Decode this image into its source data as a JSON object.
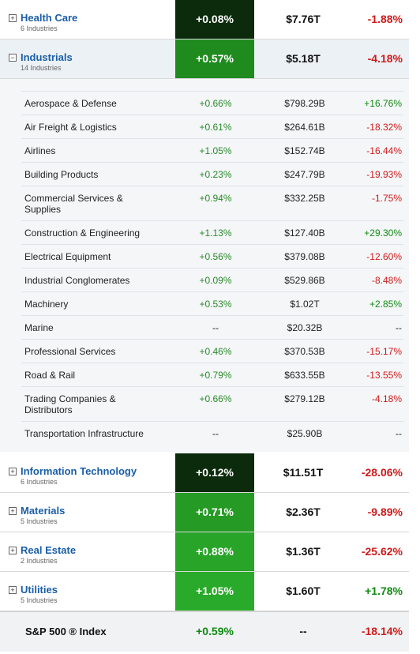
{
  "colors": {
    "link": "#1a5ea8",
    "positive": "#108a10",
    "negative": "#d01919"
  },
  "sectors": [
    {
      "name": "Health Care",
      "sub": "6 Industries",
      "change": "+0.08%",
      "cap": "$7.76T",
      "ytd": "-1.88%",
      "toggle": "+",
      "tile": "#0c2b0c"
    },
    {
      "name": "Industrials",
      "sub": "14 Industries",
      "change": "+0.57%",
      "cap": "$5.18T",
      "ytd": "-4.18%",
      "toggle": "−",
      "tile": "#1f8b1f"
    },
    {
      "name": "Information Technology",
      "sub": "6 Industries",
      "change": "+0.12%",
      "cap": "$11.51T",
      "ytd": "-28.06%",
      "toggle": "+",
      "tile": "#0c2b0c"
    },
    {
      "name": "Materials",
      "sub": "5 Industries",
      "change": "+0.71%",
      "cap": "$2.36T",
      "ytd": "-9.89%",
      "toggle": "+",
      "tile": "#259b25"
    },
    {
      "name": "Real Estate",
      "sub": "2 Industries",
      "change": "+0.88%",
      "cap": "$1.36T",
      "ytd": "-25.62%",
      "toggle": "+",
      "tile": "#28a428"
    },
    {
      "name": "Utilities",
      "sub": "5 Industries",
      "change": "+1.05%",
      "cap": "$1.60T",
      "ytd": "+1.78%",
      "toggle": "+",
      "tile": "#2aaa2a"
    }
  ],
  "industries": [
    {
      "name": "Aerospace & Defense",
      "change": "+0.66%",
      "cap": "$798.29B",
      "ytd": "+16.76%"
    },
    {
      "name": "Air Freight & Logistics",
      "change": "+0.61%",
      "cap": "$264.61B",
      "ytd": "-18.32%"
    },
    {
      "name": "Airlines",
      "change": "+1.05%",
      "cap": "$152.74B",
      "ytd": "-16.44%"
    },
    {
      "name": "Building Products",
      "change": "+0.23%",
      "cap": "$247.79B",
      "ytd": "-19.93%"
    },
    {
      "name": "Commercial Services & Supplies",
      "change": "+0.94%",
      "cap": "$332.25B",
      "ytd": "-1.75%"
    },
    {
      "name": "Construction & Engineering",
      "change": "+1.13%",
      "cap": "$127.40B",
      "ytd": "+29.30%"
    },
    {
      "name": "Electrical Equipment",
      "change": "+0.56%",
      "cap": "$379.08B",
      "ytd": "-12.60%"
    },
    {
      "name": "Industrial Conglomerates",
      "change": "+0.09%",
      "cap": "$529.86B",
      "ytd": "-8.48%"
    },
    {
      "name": "Machinery",
      "change": "+0.53%",
      "cap": "$1.02T",
      "ytd": "+2.85%"
    },
    {
      "name": "Marine",
      "change": "--",
      "cap": "$20.32B",
      "ytd": "--"
    },
    {
      "name": "Professional Services",
      "change": "+0.46%",
      "cap": "$370.53B",
      "ytd": "-15.17%"
    },
    {
      "name": "Road & Rail",
      "change": "+0.79%",
      "cap": "$633.55B",
      "ytd": "-13.55%"
    },
    {
      "name": "Trading Companies & Distributors",
      "change": "+0.66%",
      "cap": "$279.12B",
      "ytd": "-4.18%"
    },
    {
      "name": "Transportation Infrastructure",
      "change": "--",
      "cap": "$25.90B",
      "ytd": "--"
    }
  ],
  "footer": {
    "label": "S&P 500 ® Index",
    "change": "+0.59%",
    "cap": "--",
    "ytd": "-18.14%"
  }
}
